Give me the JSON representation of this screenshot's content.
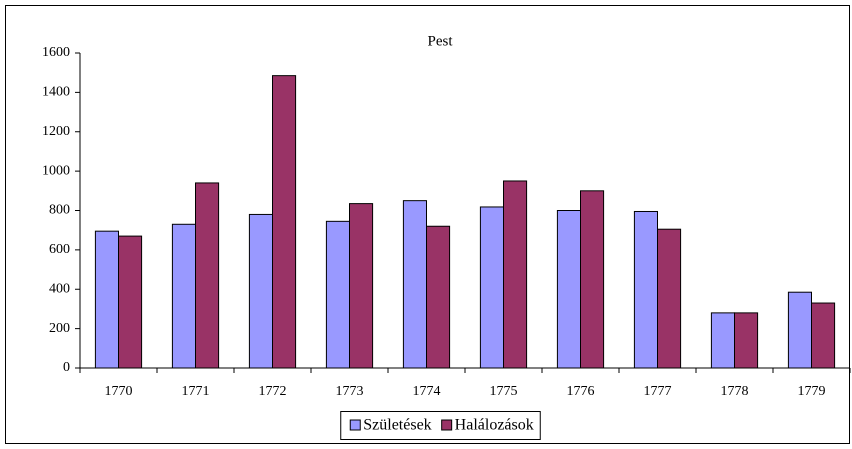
{
  "chart_data": {
    "type": "bar",
    "title": "Pest",
    "categories": [
      "1770",
      "1771",
      "1772",
      "1773",
      "1774",
      "1775",
      "1776",
      "1777",
      "1778",
      "1779"
    ],
    "series": [
      {
        "name": "Születések",
        "color": "#9999ff",
        "values": [
          695,
          730,
          780,
          745,
          850,
          818,
          800,
          795,
          280,
          385
        ]
      },
      {
        "name": "Halálozások",
        "color": "#993366",
        "values": [
          670,
          940,
          1485,
          835,
          720,
          950,
          900,
          705,
          280,
          330
        ]
      }
    ],
    "ylim": [
      0,
      1600
    ],
    "yticks": [
      0,
      200,
      400,
      600,
      800,
      1000,
      1200,
      1400,
      1600
    ],
    "grid": false,
    "legend": "bottom"
  }
}
